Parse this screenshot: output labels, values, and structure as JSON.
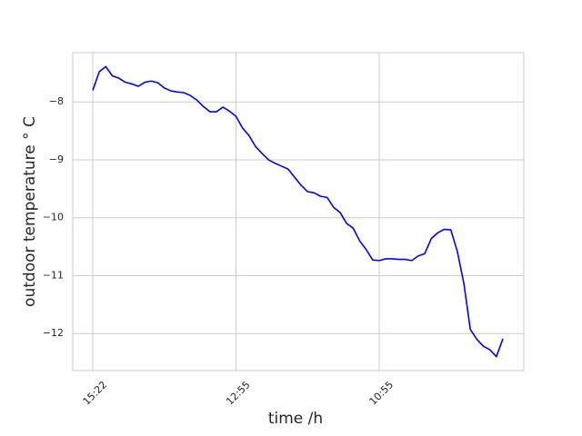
{
  "chart_data": {
    "type": "line",
    "x_label": "time /h",
    "y_label": "outdoor temperature  ° C",
    "color": "#0000ff",
    "grid": true,
    "categories": [
      "15:22",
      null,
      null,
      null,
      null,
      null,
      null,
      null,
      null,
      null,
      null,
      null,
      null,
      null,
      null,
      null,
      null,
      null,
      null,
      null,
      null,
      null,
      "12:55",
      null,
      null,
      null,
      null,
      null,
      null,
      null,
      null,
      null,
      null,
      null,
      null,
      null,
      null,
      null,
      null,
      null,
      null,
      null,
      null,
      null,
      "10:55",
      null,
      null,
      null,
      null,
      null,
      null,
      null,
      null,
      null,
      null,
      null,
      null,
      null,
      null,
      null,
      null,
      null,
      null,
      null
    ],
    "values": [
      -7.8,
      -7.48,
      -7.39,
      -7.55,
      -7.59,
      -7.66,
      -7.69,
      -7.73,
      -7.66,
      -7.64,
      -7.67,
      -7.76,
      -7.81,
      -7.83,
      -7.84,
      -7.89,
      -7.97,
      -8.08,
      -8.17,
      -8.17,
      -8.09,
      -8.16,
      -8.25,
      -8.45,
      -8.58,
      -8.77,
      -8.89,
      -9.0,
      -9.06,
      -9.11,
      -9.16,
      -9.3,
      -9.44,
      -9.55,
      -9.57,
      -9.63,
      -9.65,
      -9.82,
      -9.91,
      -10.1,
      -10.18,
      -10.4,
      -10.55,
      -10.73,
      -10.74,
      -10.71,
      -10.71,
      -10.72,
      -10.72,
      -10.74,
      -10.66,
      -10.62,
      -10.36,
      -10.26,
      -10.2,
      -10.21,
      -10.58,
      -11.13,
      -11.93,
      -12.1,
      -12.22,
      -12.28,
      -12.4,
      -12.09
    ],
    "ylim": [
      -12.64,
      -7.15
    ],
    "yticks": [
      {
        "value": -8,
        "label": "−8"
      },
      {
        "value": -9,
        "label": "−9"
      },
      {
        "value": -10,
        "label": "−10"
      },
      {
        "value": -11,
        "label": "−11"
      },
      {
        "value": -12,
        "label": "−12"
      }
    ]
  }
}
